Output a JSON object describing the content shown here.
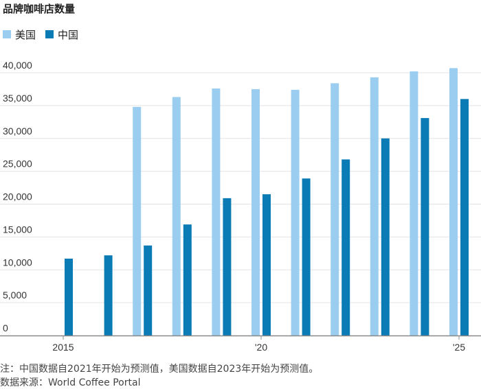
{
  "chart_data": {
    "type": "bar",
    "title": "品牌咖啡店数量",
    "colors": {
      "usa": "#9bcdf0",
      "china": "#0a7bb4"
    },
    "series": [
      {
        "name": "美国",
        "values": [
          null,
          null,
          34800,
          36300,
          37600,
          37500,
          37400,
          38400,
          39300,
          40200,
          40700
        ]
      },
      {
        "name": "中国",
        "values": [
          11700,
          12200,
          13700,
          16900,
          20900,
          21500,
          23900,
          26800,
          30000,
          33100,
          36000
        ]
      }
    ],
    "categories": [
      "2015",
      "2016",
      "2017",
      "2018",
      "2019",
      "2020",
      "2021",
      "2022",
      "2023",
      "2024",
      "2025"
    ],
    "x_tick_labels": [
      {
        "index": 0,
        "label": "2015"
      },
      {
        "index": 5,
        "label": "'20"
      },
      {
        "index": 10,
        "label": "'25"
      }
    ],
    "y_ticks": [
      {
        "value": 0,
        "label": "0"
      },
      {
        "value": 5000,
        "label": "5,000"
      },
      {
        "value": 10000,
        "label": "10,000"
      },
      {
        "value": 15000,
        "label": "15,000"
      },
      {
        "value": 20000,
        "label": "20,000"
      },
      {
        "value": 25000,
        "label": "25,000"
      },
      {
        "value": 30000,
        "label": "30,000"
      },
      {
        "value": 35000,
        "label": "35,000"
      },
      {
        "value": 40000,
        "label": "40,000"
      }
    ],
    "ylim": [
      0,
      40000
    ],
    "grid": true,
    "legend_position": "top-left"
  },
  "footer": {
    "note": "注：中国数据自2021年开始为预测值，美国数据自2023年开始为预测值。",
    "source": "数据来源：World Coffee Portal"
  }
}
